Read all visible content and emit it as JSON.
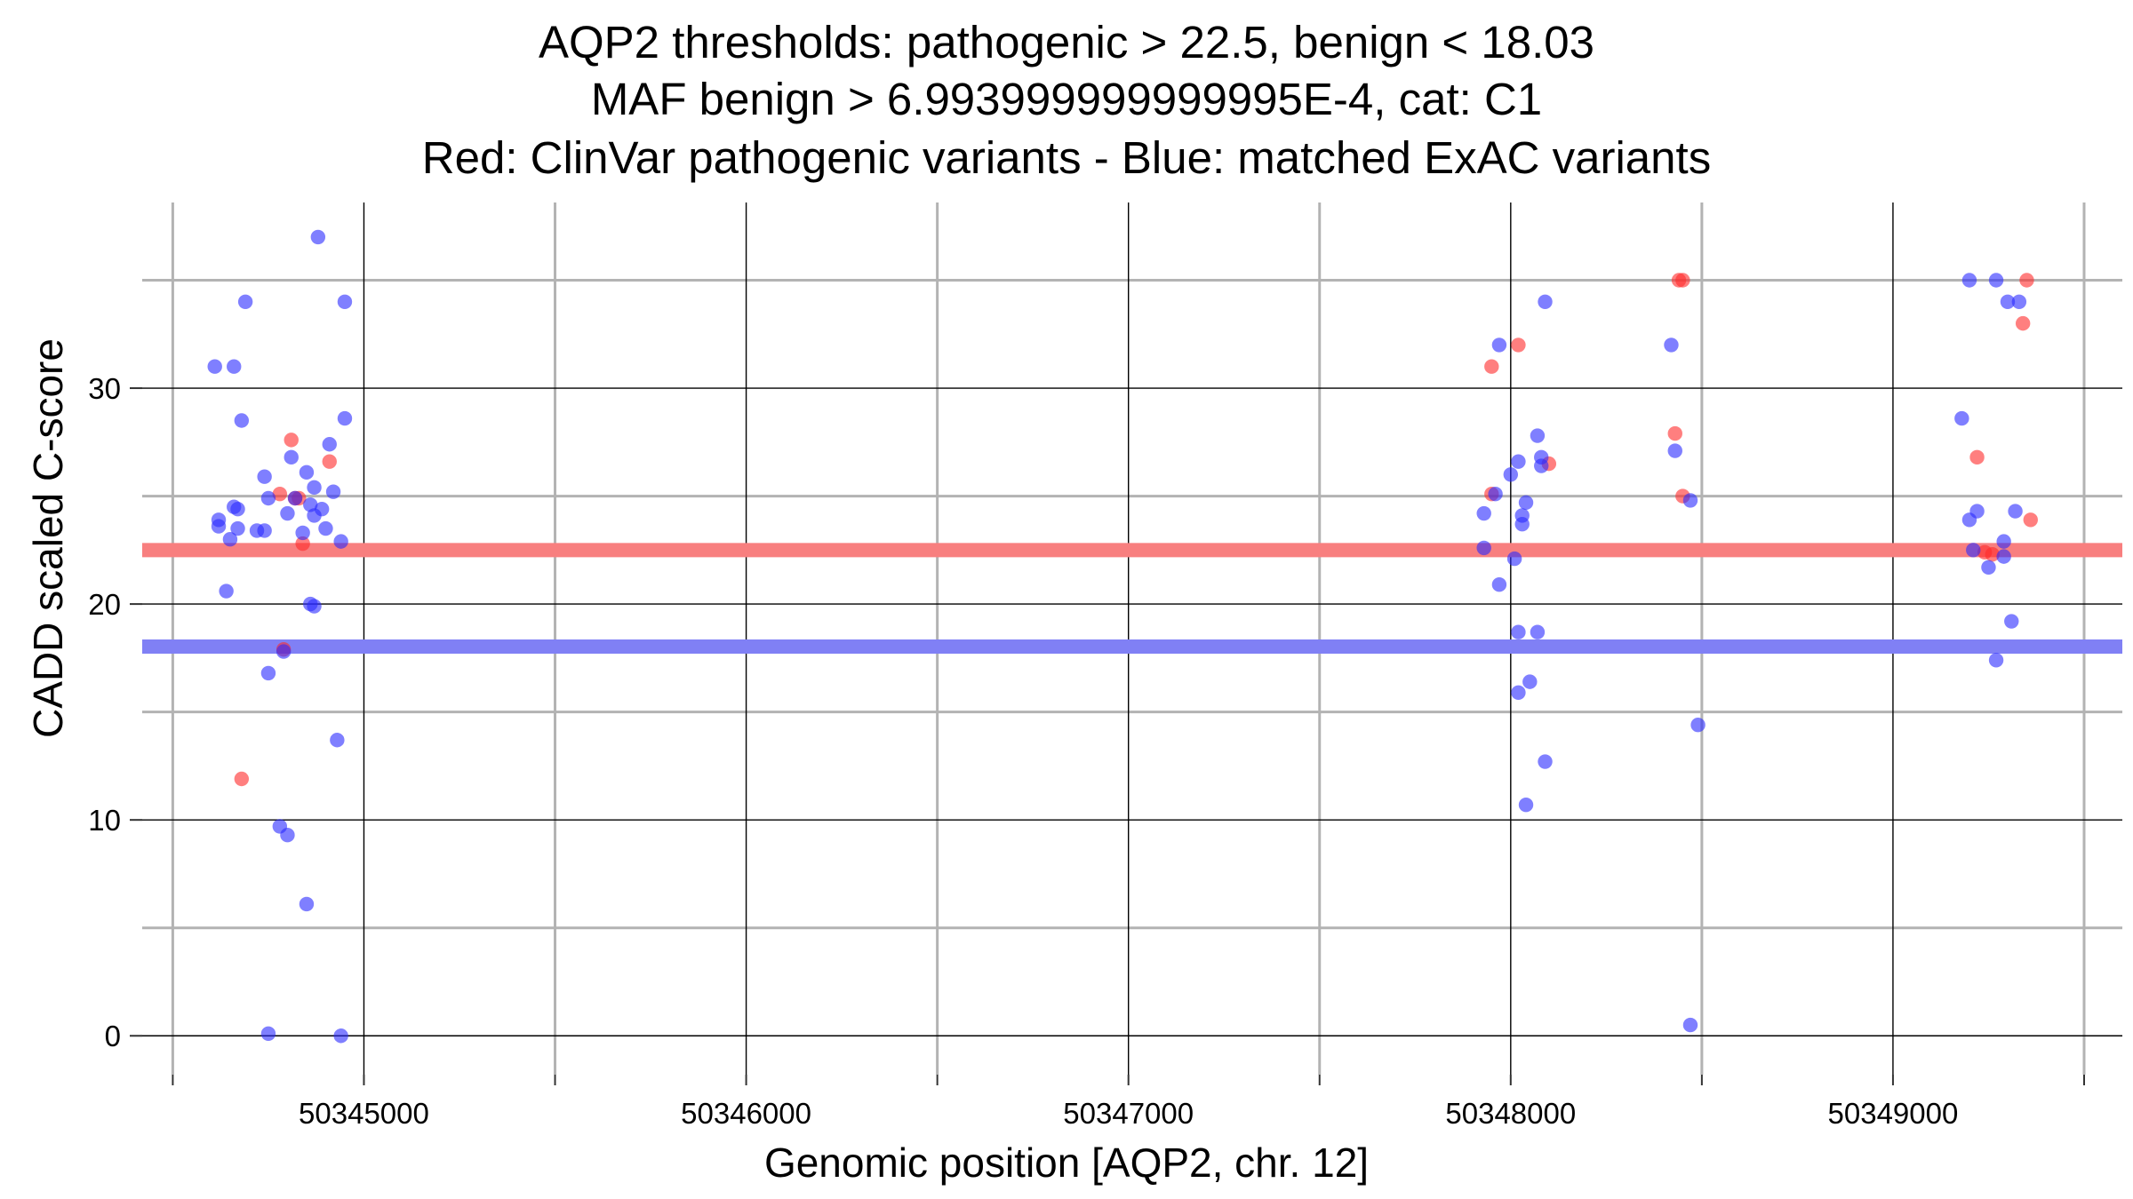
{
  "chart_data": {
    "type": "scatter",
    "title_lines": [
      "AQP2 thresholds: pathogenic > 22.5, benign < 18.03",
      "MAF benign > 6.993999999999995E-4, cat: C1",
      "Red: ClinVar pathogenic variants - Blue: matched ExAC variants"
    ],
    "xlabel": "Genomic position [AQP2, chr. 12]",
    "ylabel": "CADD scaled C-score",
    "xlim": [
      50344420,
      50349600
    ],
    "ylim": [
      -1.8,
      38.6
    ],
    "x_major_ticks": [
      50345000,
      50346000,
      50347000,
      50348000,
      50349000
    ],
    "x_minor_ticks": [
      50344500,
      50345500,
      50346500,
      50347500,
      50348500,
      50349500
    ],
    "y_major_ticks": [
      0,
      10,
      20,
      30
    ],
    "y_minor_ticks": [
      5,
      15,
      25,
      35
    ],
    "x_tick_labels": [
      "50345000",
      "50346000",
      "50347000",
      "50348000",
      "50349000"
    ],
    "y_tick_labels": [
      "0",
      "10",
      "20",
      "30"
    ],
    "thresholds": [
      {
        "name": "pathogenic",
        "value": 22.5,
        "color": "#f87f7f"
      },
      {
        "name": "benign",
        "value": 18.03,
        "color": "#8080f5"
      }
    ],
    "series": [
      {
        "name": "ClinVar pathogenic variants",
        "color": "#ff2a2a",
        "points": [
          [
            50344780,
            25.1
          ],
          [
            50344810,
            27.6
          ],
          [
            50344820,
            24.9
          ],
          [
            50344830,
            24.9
          ],
          [
            50344840,
            22.8
          ],
          [
            50344680,
            11.9
          ],
          [
            50344910,
            26.6
          ],
          [
            50344790,
            17.9
          ],
          [
            50347950,
            31.0
          ],
          [
            50347950,
            25.1
          ],
          [
            50348020,
            32.0
          ],
          [
            50348100,
            26.5
          ],
          [
            50348440,
            35.0
          ],
          [
            50348450,
            35.0
          ],
          [
            50348430,
            27.9
          ],
          [
            50348450,
            25.0
          ],
          [
            50349220,
            26.8
          ],
          [
            50349240,
            22.4
          ],
          [
            50349350,
            35.0
          ],
          [
            50349340,
            33.0
          ],
          [
            50349360,
            23.9
          ],
          [
            50349260,
            22.3
          ]
        ]
      },
      {
        "name": "matched ExAC variants",
        "color": "#2a2aff",
        "points": [
          [
            50344610,
            31.0
          ],
          [
            50344660,
            31.0
          ],
          [
            50344690,
            34.0
          ],
          [
            50344620,
            23.9
          ],
          [
            50344620,
            23.6
          ],
          [
            50344660,
            24.5
          ],
          [
            50344670,
            24.4
          ],
          [
            50344670,
            23.5
          ],
          [
            50344650,
            23.0
          ],
          [
            50344640,
            20.6
          ],
          [
            50344680,
            28.5
          ],
          [
            50344720,
            23.4
          ],
          [
            50344740,
            23.4
          ],
          [
            50344740,
            25.9
          ],
          [
            50344750,
            24.9
          ],
          [
            50344750,
            16.8
          ],
          [
            50344800,
            24.2
          ],
          [
            50344810,
            26.8
          ],
          [
            50344820,
            24.9
          ],
          [
            50344840,
            23.3
          ],
          [
            50344850,
            26.1
          ],
          [
            50344860,
            24.6
          ],
          [
            50344870,
            24.1
          ],
          [
            50344870,
            25.4
          ],
          [
            50344880,
            37.0
          ],
          [
            50344890,
            24.4
          ],
          [
            50344900,
            23.5
          ],
          [
            50344910,
            27.4
          ],
          [
            50344920,
            25.2
          ],
          [
            50344940,
            22.9
          ],
          [
            50344950,
            34.0
          ],
          [
            50344950,
            28.6
          ],
          [
            50344860,
            20.0
          ],
          [
            50344870,
            19.9
          ],
          [
            50344790,
            17.8
          ],
          [
            50344780,
            9.7
          ],
          [
            50344800,
            9.3
          ],
          [
            50344850,
            6.1
          ],
          [
            50344930,
            13.7
          ],
          [
            50344750,
            0.1
          ],
          [
            50344940,
            0.0
          ],
          [
            50347930,
            24.2
          ],
          [
            50347930,
            22.6
          ],
          [
            50347960,
            25.1
          ],
          [
            50347970,
            32.0
          ],
          [
            50347970,
            20.9
          ],
          [
            50348000,
            26.0
          ],
          [
            50348010,
            22.1
          ],
          [
            50348020,
            26.6
          ],
          [
            50348030,
            24.1
          ],
          [
            50348030,
            23.7
          ],
          [
            50348040,
            24.7
          ],
          [
            50348070,
            27.8
          ],
          [
            50348080,
            26.8
          ],
          [
            50348080,
            26.4
          ],
          [
            50348090,
            34.0
          ],
          [
            50348020,
            18.7
          ],
          [
            50348070,
            18.7
          ],
          [
            50348020,
            15.9
          ],
          [
            50348050,
            16.4
          ],
          [
            50348090,
            12.7
          ],
          [
            50348040,
            10.7
          ],
          [
            50348420,
            32.0
          ],
          [
            50348430,
            27.1
          ],
          [
            50348470,
            24.8
          ],
          [
            50348490,
            14.4
          ],
          [
            50348470,
            0.5
          ],
          [
            50349180,
            28.6
          ],
          [
            50349200,
            35.0
          ],
          [
            50349270,
            35.0
          ],
          [
            50349300,
            34.0
          ],
          [
            50349330,
            34.0
          ],
          [
            50349200,
            23.9
          ],
          [
            50349220,
            24.3
          ],
          [
            50349210,
            22.5
          ],
          [
            50349250,
            21.7
          ],
          [
            50349290,
            22.9
          ],
          [
            50349290,
            22.2
          ],
          [
            50349320,
            24.3
          ],
          [
            50349310,
            19.2
          ],
          [
            50349270,
            17.4
          ]
        ]
      }
    ]
  }
}
